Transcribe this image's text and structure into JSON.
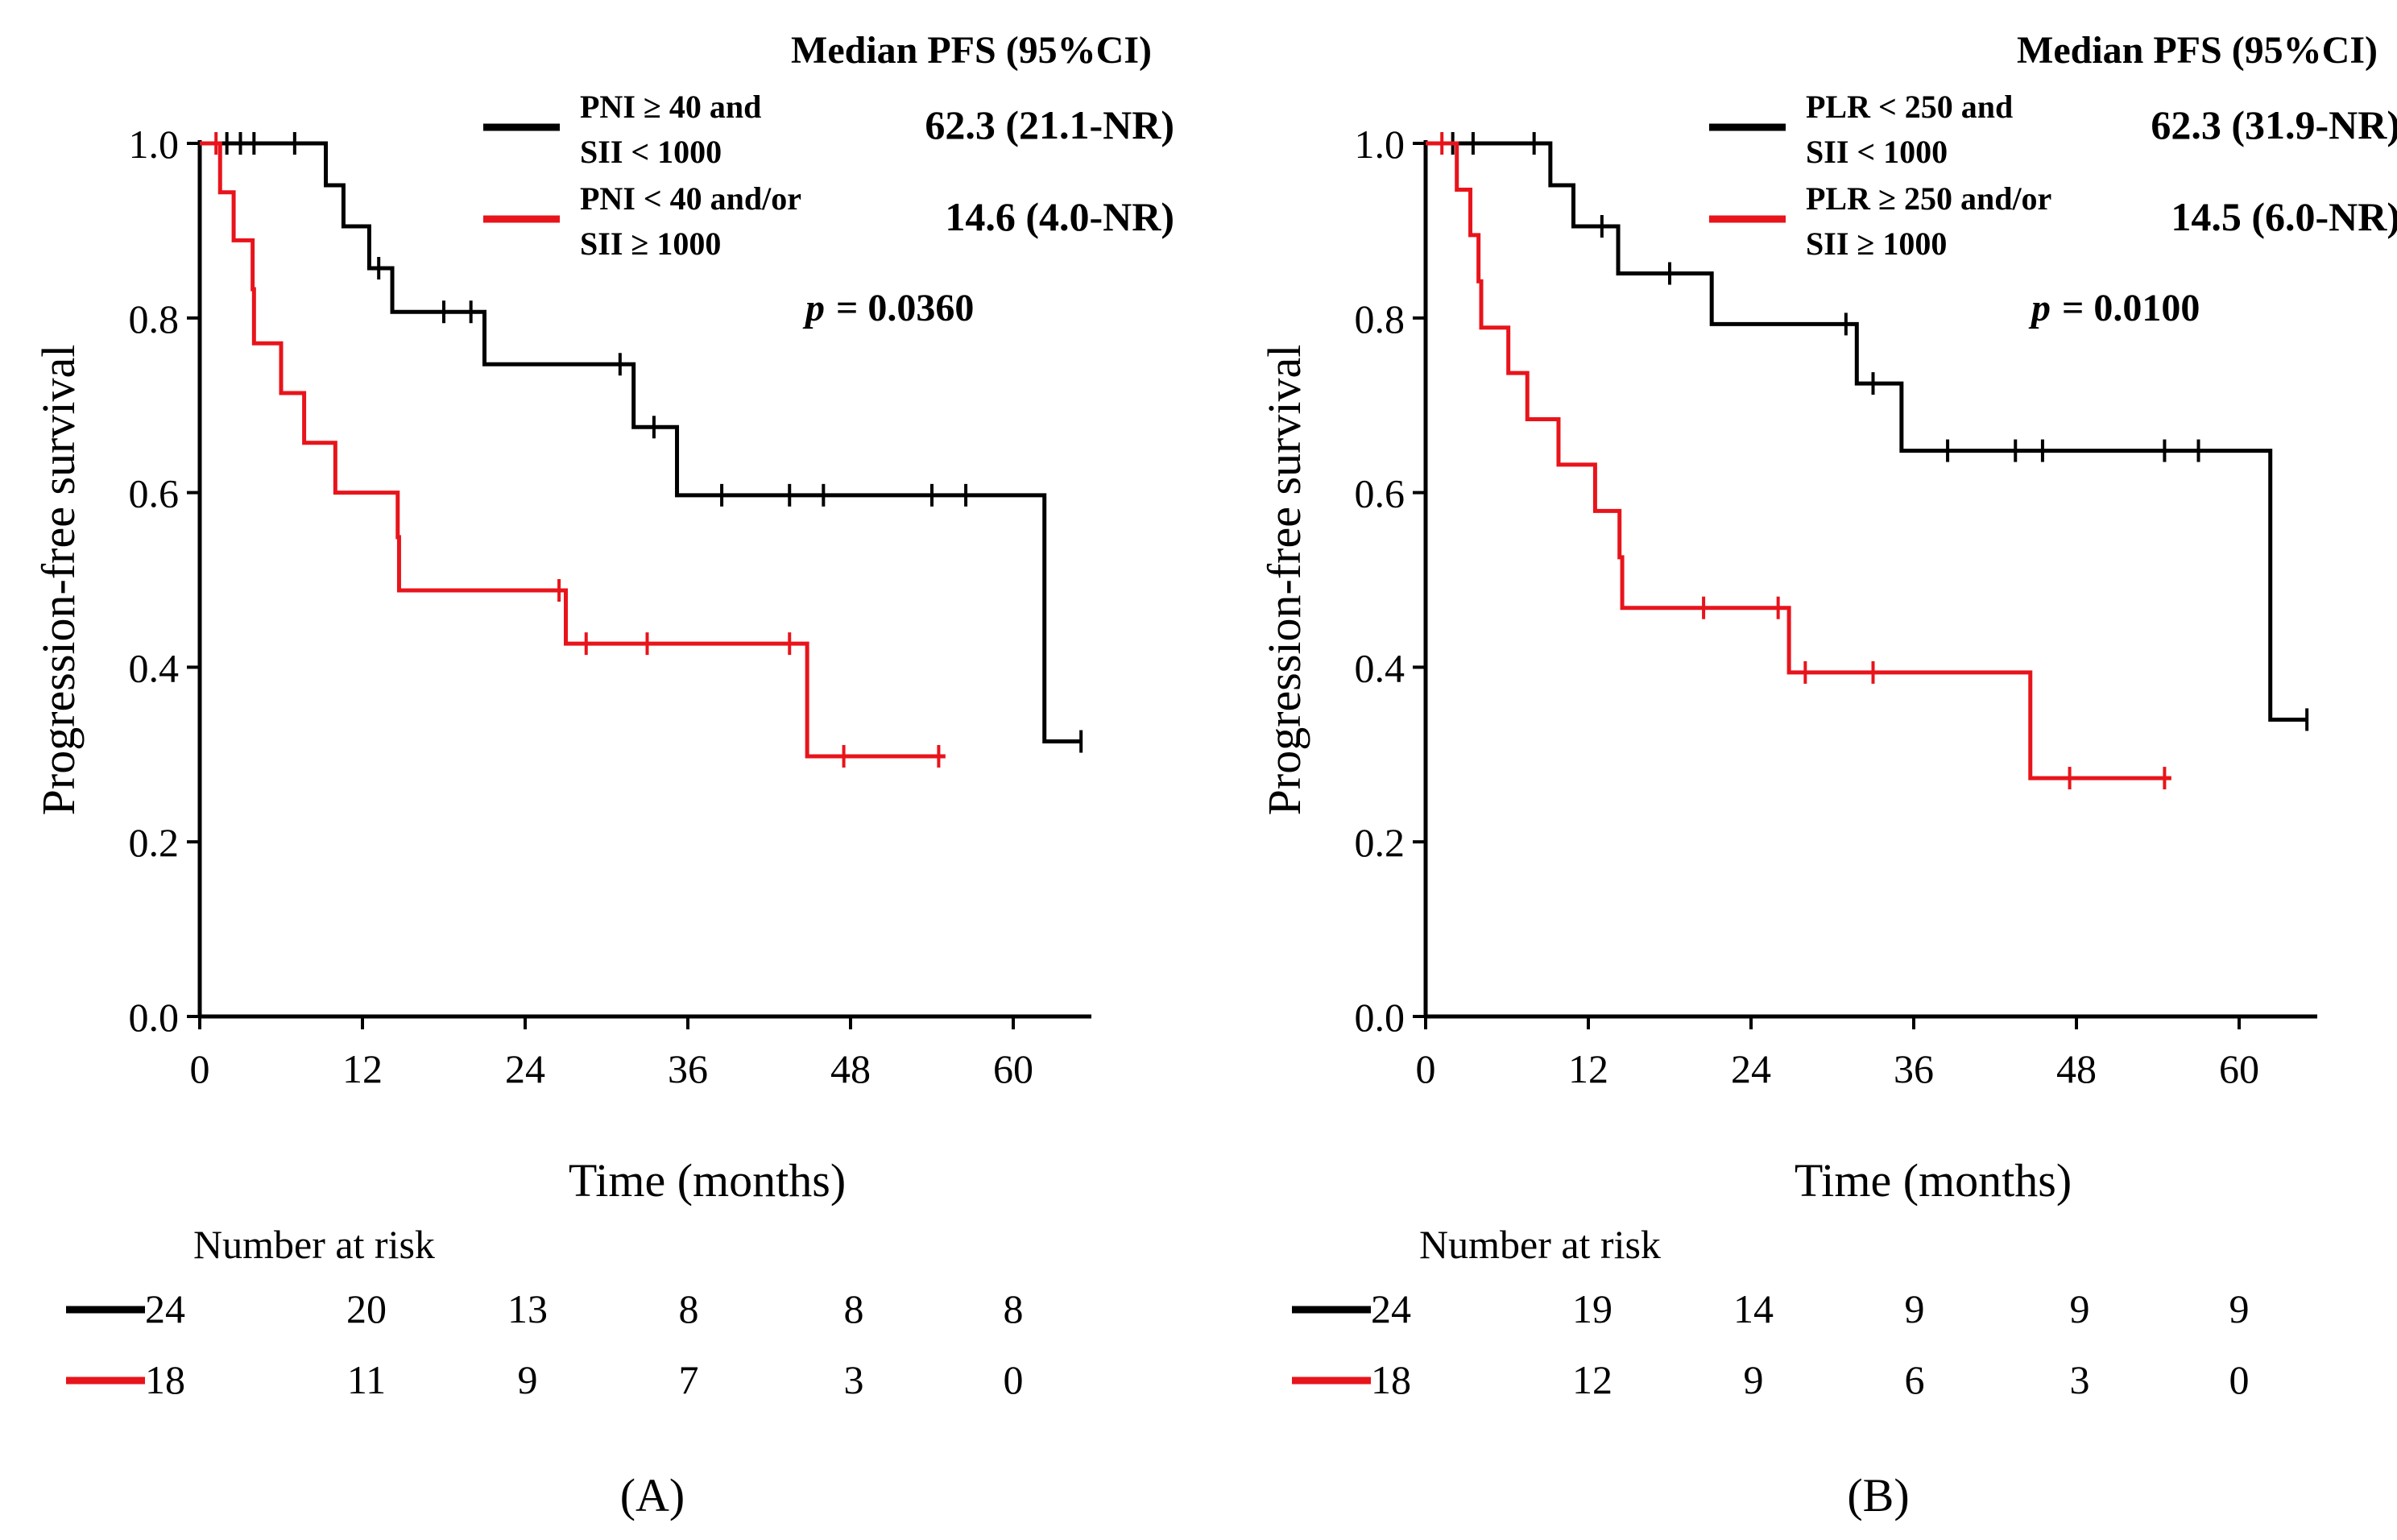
{
  "chart_data": [
    {
      "type": "line",
      "panel_label": "(A)",
      "xlabel": "Time (months)",
      "ylabel": "Progression-free survival",
      "xlim": [
        0,
        66
      ],
      "ylim": [
        0,
        1
      ],
      "xticks": [
        "0",
        "12",
        "24",
        "36",
        "48",
        "60"
      ],
      "yticks": [
        "0.0",
        "0.2",
        "0.4",
        "0.6",
        "0.8",
        "1.0"
      ],
      "median_header": "Median PFS  (95%CI)",
      "p_value_prefix": "p",
      "p_value_text": "= 0.0360",
      "risk_table_title": "Number at risk",
      "series": [
        {
          "name": "PNI ≥ 40 and SII < 1000",
          "legend_lines": [
            "PNI ≥ 40 and",
            "SII < 1000"
          ],
          "median": "62.3 (21.1-NR)",
          "color": "#000000",
          "steps": [
            [
              0,
              1.0
            ],
            [
              9.3,
              0.952
            ],
            [
              10.6,
              0.905
            ],
            [
              12.5,
              0.857
            ],
            [
              14.2,
              0.807
            ],
            [
              21,
              0.747
            ],
            [
              32,
              0.675
            ],
            [
              35.2,
              0.597
            ],
            [
              62.3,
              0.315
            ],
            [
              65,
              0.315
            ]
          ],
          "censor_times": [
            2,
            3,
            4,
            7,
            13.2,
            18,
            20,
            31,
            33.5,
            38.5,
            43.5,
            46,
            54,
            56.5,
            65
          ],
          "at_risk": [
            "24",
            "20",
            "13",
            "8",
            "8",
            "8"
          ]
        },
        {
          "name": "PNI < 40 and/or SII ≥ 1000",
          "legend_lines": [
            "PNI < 40 and/or",
            "SII ≥ 1000"
          ],
          "median": "14.6 (4.0-NR)",
          "color": "#e8141b",
          "steps": [
            [
              0,
              1.0
            ],
            [
              1.5,
              0.944
            ],
            [
              2.5,
              0.889
            ],
            [
              3.9,
              0.833
            ],
            [
              4.0,
              0.771
            ],
            [
              6,
              0.714
            ],
            [
              7.7,
              0.657
            ],
            [
              10,
              0.6
            ],
            [
              14.6,
              0.549
            ],
            [
              14.7,
              0.488
            ],
            [
              27,
              0.427
            ],
            [
              44.8,
              0.298
            ],
            [
              55,
              0.298
            ]
          ],
          "censor_times": [
            1.2,
            26.5,
            28.5,
            33,
            43.5,
            47.5,
            54.5
          ],
          "at_risk": [
            "18",
            "11",
            "9",
            "7",
            "3",
            "0"
          ]
        }
      ]
    },
    {
      "type": "line",
      "panel_label": "(B)",
      "xlabel": "Time (months)",
      "ylabel": "Progression-free survival",
      "xlim": [
        0,
        66
      ],
      "ylim": [
        0,
        1
      ],
      "xticks": [
        "0",
        "12",
        "24",
        "36",
        "48",
        "60"
      ],
      "yticks": [
        "0.0",
        "0.2",
        "0.4",
        "0.6",
        "0.8",
        "1.0"
      ],
      "median_header": "Median PFS  (95%CI)",
      "p_value_prefix": "p",
      "p_value_text": "= 0.0100",
      "risk_table_title": "Number at risk",
      "series": [
        {
          "name": "PLR < 250 and SII < 1000",
          "legend_lines": [
            "PLR < 250 and",
            "SII < 1000"
          ],
          "median": "62.3 (31.9-NR)",
          "color": "#000000",
          "steps": [
            [
              0,
              1.0
            ],
            [
              9.2,
              0.952
            ],
            [
              10.9,
              0.905
            ],
            [
              14.2,
              0.851
            ],
            [
              21.1,
              0.793
            ],
            [
              31.8,
              0.725
            ],
            [
              35.1,
              0.648
            ],
            [
              62.3,
              0.34
            ],
            [
              65,
              0.34
            ]
          ],
          "censor_times": [
            2,
            3.5,
            8,
            13,
            18,
            31,
            33,
            38.5,
            43.5,
            45.5,
            54.5,
            57,
            65
          ],
          "at_risk": [
            "24",
            "19",
            "14",
            "9",
            "9",
            "9"
          ]
        },
        {
          "name": "PLR ≥ 250 and/or SII ≥ 1000",
          "legend_lines": [
            "PLR ≥ 250 and/or",
            "SII ≥ 1000"
          ],
          "median": "14.5 (6.0-NR)",
          "color": "#e8141b",
          "steps": [
            [
              0,
              1.0
            ],
            [
              2.3,
              0.947
            ],
            [
              3.3,
              0.895
            ],
            [
              3.9,
              0.842
            ],
            [
              4.1,
              0.789
            ],
            [
              6.1,
              0.737
            ],
            [
              7.5,
              0.684
            ],
            [
              9.8,
              0.632
            ],
            [
              12.5,
              0.579
            ],
            [
              14.3,
              0.526
            ],
            [
              14.5,
              0.468
            ],
            [
              26.8,
              0.394
            ],
            [
              44.6,
              0.273
            ],
            [
              55,
              0.273
            ]
          ],
          "censor_times": [
            1.2,
            20.5,
            26,
            28,
            33,
            47.5,
            54.5
          ],
          "at_risk": [
            "18",
            "12",
            "9",
            "6",
            "3",
            "0"
          ]
        }
      ]
    }
  ]
}
